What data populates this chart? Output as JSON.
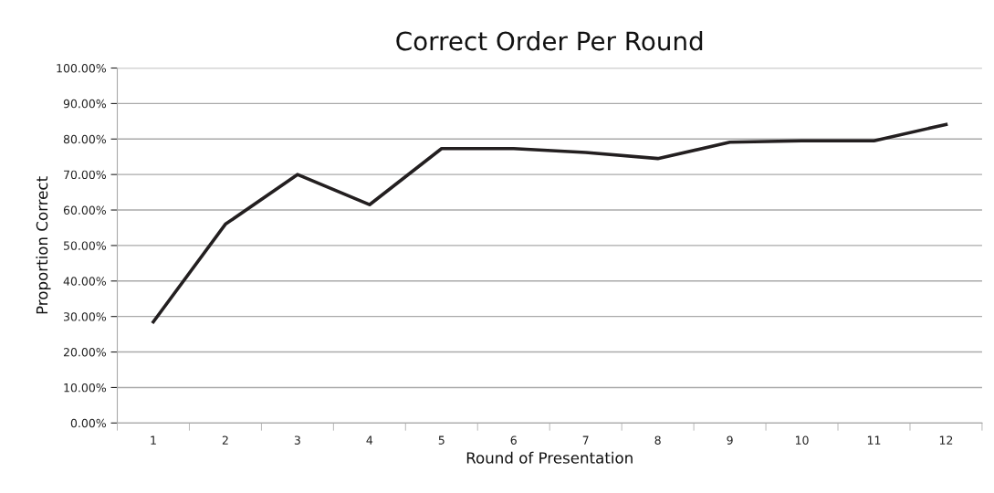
{
  "chart_data": {
    "type": "line",
    "title": "Correct Order Per Round",
    "xlabel": "Round of Presentation",
    "ylabel": "Proportion Correct",
    "categories": [
      "1",
      "2",
      "3",
      "4",
      "5",
      "6",
      "7",
      "8",
      "9",
      "10",
      "11",
      "12"
    ],
    "series": [
      {
        "color": "#231f20",
        "values": [
          28.5,
          56,
          70,
          61.5,
          77.3,
          77.3,
          76.2,
          74.5,
          79.1,
          79.5,
          79.5,
          84.1
        ]
      }
    ],
    "ylim": [
      0,
      100
    ],
    "yticks": [
      {
        "value": 0,
        "label": "0.00%"
      },
      {
        "value": 10,
        "label": "10.00%"
      },
      {
        "value": 20,
        "label": "20.00%"
      },
      {
        "value": 30,
        "label": "30.00%"
      },
      {
        "value": 40,
        "label": "40.00%"
      },
      {
        "value": 50,
        "label": "50.00%"
      },
      {
        "value": 60,
        "label": "60.00%"
      },
      {
        "value": 70,
        "label": "70.00%"
      },
      {
        "value": 80,
        "label": "80.00%"
      },
      {
        "value": 90,
        "label": "90.00%"
      },
      {
        "value": 100,
        "label": "100.00%"
      }
    ],
    "grid": "y",
    "marker": "none",
    "line_style": "solid"
  }
}
